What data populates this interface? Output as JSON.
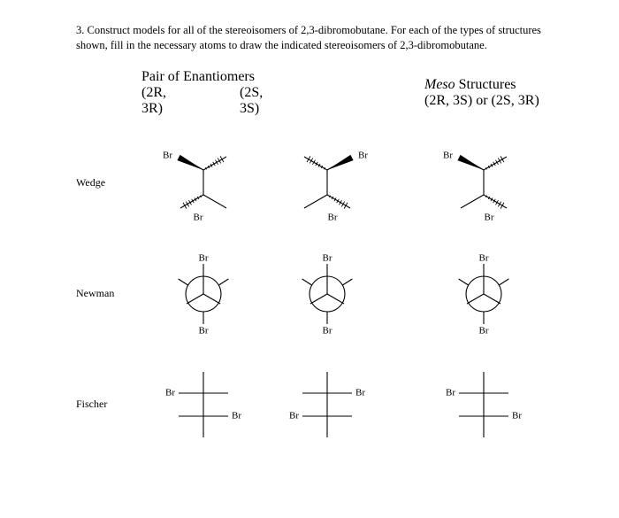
{
  "question": "3. Construct models for all of the stereoisomers of 2,3-dibromobutane. For each of the types of structures shown, fill in the necessary atoms to draw the indicated stereoisomers of 2,3-dibromobutane.",
  "headers": {
    "pair_title": "Pair of Enantiomers",
    "meso_title_italic": "Meso",
    "meso_title_rest": " Structures",
    "col1": "(2R, 3R)",
    "col2": "(2S, 3S)",
    "col3": "(2R, 3S) or (2S, 3R)"
  },
  "rows": {
    "wedge": "Wedge",
    "newman": "Newman",
    "fischer": "Fischer"
  },
  "atoms": {
    "br": "Br"
  },
  "style": {
    "text_color": "#000000",
    "background": "#ffffff",
    "question_fontsize": 12.5,
    "label_fontsize": 12,
    "atom_fontsize": 11,
    "font_family": "Times New Roman",
    "stroke_color": "#000000",
    "stroke_width": 1.1
  },
  "diagrams": {
    "wedge": [
      {
        "top_br_side": "left",
        "wedge_top_side": "right",
        "wedge_bot_side": "left"
      },
      {
        "top_br_side": "right",
        "wedge_top_side": "left",
        "wedge_bot_side": "right"
      },
      {
        "top_br_side": "left",
        "wedge_top_side": "right",
        "wedge_bot_side": "right"
      }
    ],
    "newman": [
      {
        "top_label": "Br",
        "bot_label": "Br"
      },
      {
        "top_label": "Br",
        "bot_label": "Br"
      },
      {
        "top_label": "Br",
        "bot_label": "Br"
      }
    ],
    "fischer": [
      {
        "row1": {
          "side": "left",
          "text": "Br"
        },
        "row2": {
          "side": "right",
          "text": "Br"
        }
      },
      {
        "row1": {
          "side": "right",
          "text": "Br"
        },
        "row2": {
          "side": "left",
          "text": "Br"
        }
      },
      {
        "row1": {
          "side": "left",
          "text": "Br"
        },
        "row2": {
          "side": "right",
          "text": "Br"
        }
      }
    ]
  }
}
